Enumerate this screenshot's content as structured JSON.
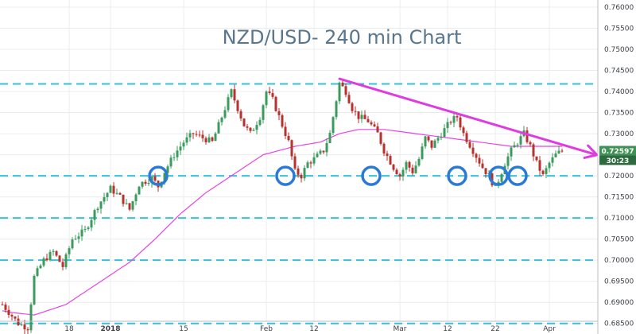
{
  "colors": {
    "up": "#3a9b5c",
    "down": "#b8322d",
    "ma": "#e545e0",
    "support": "#36c2d6",
    "trendline": "#e03be0",
    "circle": "#2a7ad6",
    "grid": "#e9ecef",
    "price_tag_bg": "#3f9256",
    "timer_bg": "#2d6a40"
  },
  "chart_data": {
    "type": "candlestick",
    "title": "NZD/USD- 240 min Chart",
    "ylim": [
      0.6825,
      0.7615
    ],
    "y_ticks": [
      "0.76000",
      "0.75500",
      "0.75000",
      "0.74500",
      "0.74000",
      "0.73500",
      "0.73000",
      "0.72500",
      "0.72000",
      "0.71500",
      "0.71000",
      "0.70500",
      "0.70000",
      "0.69500",
      "0.69000",
      "0.68500"
    ],
    "x_ticks": [
      {
        "label": "18",
        "bold": false,
        "bar": 21
      },
      {
        "label": "2018",
        "bold": true,
        "bar": 34
      },
      {
        "label": "15",
        "bold": false,
        "bar": 57
      },
      {
        "label": "Feb",
        "bold": false,
        "bar": 83
      },
      {
        "label": "12",
        "bold": false,
        "bar": 98
      },
      {
        "label": "Mar",
        "bold": false,
        "bar": 125
      },
      {
        "label": "12",
        "bold": false,
        "bar": 140
      },
      {
        "label": "22",
        "bold": false,
        "bar": 155
      },
      {
        "label": "Apr",
        "bold": false,
        "bar": 172
      }
    ],
    "current_price": "0.72597",
    "countdown": "30:23",
    "support_levels": [
      0.7418,
      0.72,
      0.71,
      0.7,
      0.685
    ],
    "price_waypoints": [
      [
        0,
        0.6895
      ],
      [
        5,
        0.685
      ],
      [
        8,
        0.684
      ],
      [
        10,
        0.696
      ],
      [
        13,
        0.7
      ],
      [
        16,
        0.702
      ],
      [
        19,
        0.6985
      ],
      [
        22,
        0.705
      ],
      [
        26,
        0.707
      ],
      [
        30,
        0.713
      ],
      [
        34,
        0.717
      ],
      [
        37,
        0.715
      ],
      [
        40,
        0.712
      ],
      [
        43,
        0.718
      ],
      [
        47,
        0.7195
      ],
      [
        49,
        0.7175
      ],
      [
        51,
        0.721
      ],
      [
        54,
        0.725
      ],
      [
        57,
        0.728
      ],
      [
        60,
        0.73
      ],
      [
        63,
        0.729
      ],
      [
        66,
        0.728
      ],
      [
        69,
        0.734
      ],
      [
        72,
        0.74
      ],
      [
        74,
        0.736
      ],
      [
        76,
        0.732
      ],
      [
        78,
        0.73
      ],
      [
        81,
        0.734
      ],
      [
        83,
        0.74
      ],
      [
        85,
        0.738
      ],
      [
        88,
        0.732
      ],
      [
        90,
        0.728
      ],
      [
        92,
        0.721
      ],
      [
        94,
        0.72
      ],
      [
        96,
        0.723
      ],
      [
        98,
        0.724
      ],
      [
        101,
        0.726
      ],
      [
        103,
        0.73
      ],
      [
        105,
        0.738
      ],
      [
        106,
        0.742
      ],
      [
        108,
        0.74
      ],
      [
        110,
        0.736
      ],
      [
        112,
        0.734
      ],
      [
        115,
        0.733
      ],
      [
        118,
        0.73
      ],
      [
        120,
        0.726
      ],
      [
        123,
        0.722
      ],
      [
        125,
        0.72
      ],
      [
        127,
        0.723
      ],
      [
        129,
        0.721
      ],
      [
        131,
        0.724
      ],
      [
        133,
        0.729
      ],
      [
        135,
        0.727
      ],
      [
        138,
        0.73
      ],
      [
        141,
        0.733
      ],
      [
        143,
        0.734
      ],
      [
        145,
        0.73
      ],
      [
        148,
        0.726
      ],
      [
        151,
        0.722
      ],
      [
        153,
        0.72
      ],
      [
        155,
        0.717
      ],
      [
        156,
        0.719
      ],
      [
        158,
        0.723
      ],
      [
        160,
        0.726
      ],
      [
        162,
        0.728
      ],
      [
        164,
        0.73
      ],
      [
        166,
        0.727
      ],
      [
        168,
        0.723
      ],
      [
        170,
        0.72
      ],
      [
        172,
        0.723
      ],
      [
        174,
        0.725
      ],
      [
        176,
        0.726
      ]
    ],
    "ma_waypoints": [
      [
        0,
        0.688
      ],
      [
        4,
        0.6875
      ],
      [
        10,
        0.687
      ],
      [
        20,
        0.6895
      ],
      [
        30,
        0.6945
      ],
      [
        40,
        0.6995
      ],
      [
        48,
        0.705
      ],
      [
        56,
        0.711
      ],
      [
        64,
        0.716
      ],
      [
        72,
        0.72
      ],
      [
        82,
        0.725
      ],
      [
        92,
        0.727
      ],
      [
        100,
        0.728
      ],
      [
        106,
        0.73
      ],
      [
        112,
        0.731
      ],
      [
        120,
        0.731
      ],
      [
        130,
        0.73
      ],
      [
        140,
        0.729
      ],
      [
        150,
        0.728
      ],
      [
        160,
        0.727
      ],
      [
        170,
        0.727
      ],
      [
        176,
        0.727
      ]
    ],
    "trendline": [
      [
        106,
        0.743
      ],
      [
        176,
        0.7265
      ]
    ],
    "circles": [
      {
        "bar": 49,
        "price": 0.72
      },
      {
        "bar": 89,
        "price": 0.72
      },
      {
        "bar": 116,
        "price": 0.72
      },
      {
        "bar": 143,
        "price": 0.72
      },
      {
        "bar": 156,
        "price": 0.72
      },
      {
        "bar": 162,
        "price": 0.72
      }
    ]
  }
}
